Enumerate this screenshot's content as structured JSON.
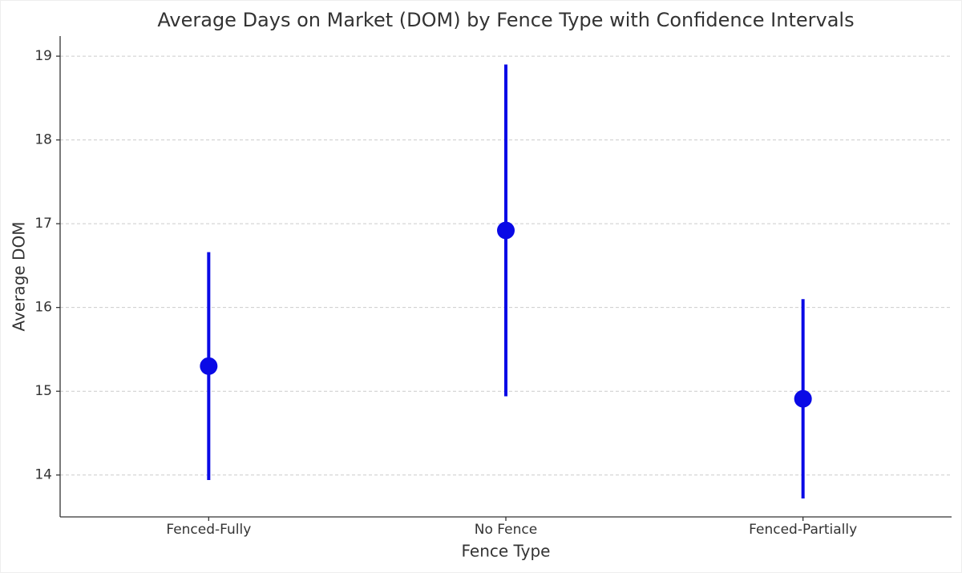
{
  "chart_data": {
    "type": "errorbar",
    "title": "Average Days on Market (DOM) by Fence Type with Confidence Intervals",
    "x_label": "Fence Type",
    "y_label": "Average DOM",
    "categories": [
      "Fenced-Fully",
      "No Fence",
      "Fenced-Partially"
    ],
    "values": [
      15.3,
      16.92,
      14.91
    ],
    "errors": [
      1.36,
      1.98,
      1.19
    ],
    "color": "#0a0ae6",
    "ylim": [
      13.5,
      19.24
    ],
    "yticks": [
      14,
      15,
      16,
      17,
      18,
      19
    ],
    "grid": true
  }
}
